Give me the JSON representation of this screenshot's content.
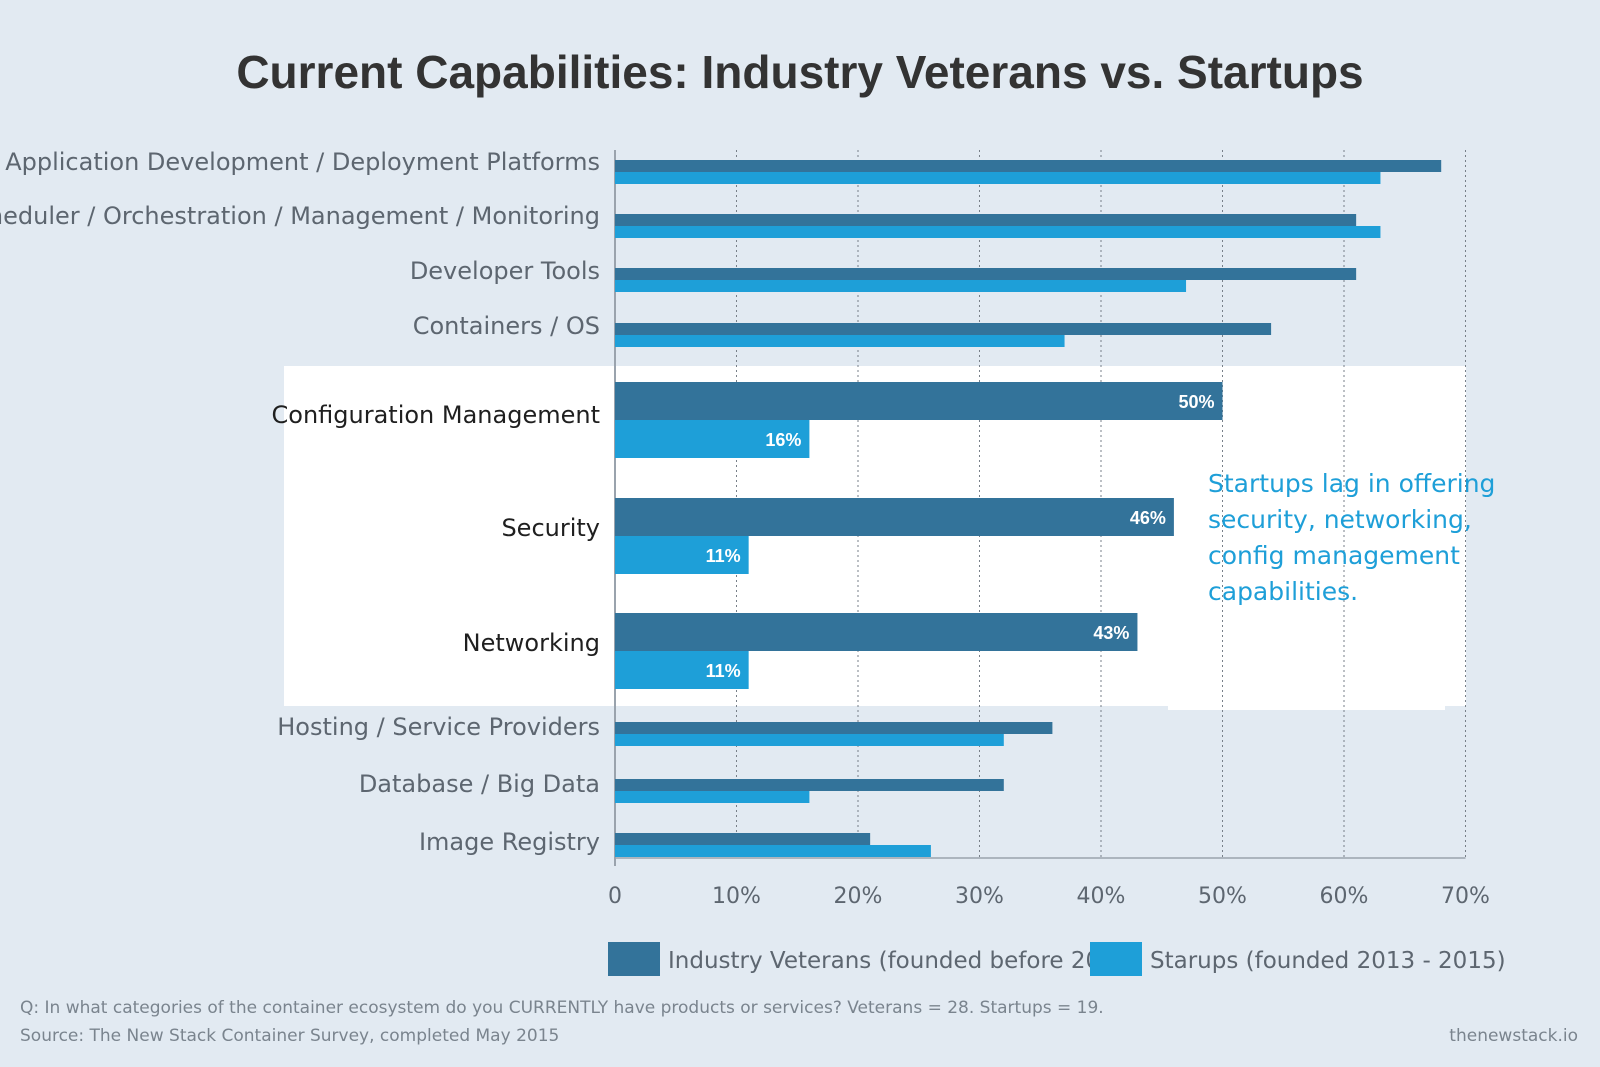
{
  "chart_data": {
    "type": "bar",
    "orientation": "horizontal",
    "title": "Current Capabilities: Industry Veterans vs. Startups",
    "categories": [
      "Application Development / Deployment Platforms",
      "Scheduler / Orchestration / Management / Monitoring",
      "Developer Tools",
      "Containers / OS",
      "Configuration Management",
      "Security",
      "Networking",
      "Hosting / Service Providers",
      "Database / Big Data",
      "Image Registry"
    ],
    "highlighted_categories": [
      "Configuration Management",
      "Security",
      "Networking"
    ],
    "series": [
      {
        "name": "Industry Veterans (founded before 2013)",
        "color": "#33739a",
        "values": [
          68,
          61,
          61,
          54,
          50,
          46,
          43,
          36,
          32,
          21
        ]
      },
      {
        "name": "Starups (founded 2013 - 2015)",
        "color": "#1e9fd8",
        "values": [
          63,
          63,
          47,
          37,
          16,
          11,
          11,
          32,
          16,
          26
        ]
      }
    ],
    "data_labels": {
      "Configuration Management": [
        "50%",
        "16%"
      ],
      "Security": [
        "46%",
        "11%"
      ],
      "Networking": [
        "43%",
        "11%"
      ]
    },
    "xlim": [
      0,
      70
    ],
    "xticks": [
      "0",
      "10%",
      "20%",
      "30%",
      "40%",
      "50%",
      "60%",
      "70%"
    ],
    "grid": "vertical dotted",
    "legend_position": "bottom",
    "annotation": [
      "Startups lag in offering",
      "security, networking,",
      "config management",
      "capabilities."
    ]
  },
  "footer": {
    "question": "Q: In what categories of the container ecosystem do you CURRENTLY have products or services? Veterans = 28. Startups = 19.",
    "source": "Source: The New Stack Container Survey, completed May 2015",
    "site": "thenewstack.io"
  },
  "colors": {
    "background": "#e2eaf2",
    "highlight_panel": "#ffffff",
    "veterans": "#33739a",
    "startups": "#1e9fd8"
  }
}
